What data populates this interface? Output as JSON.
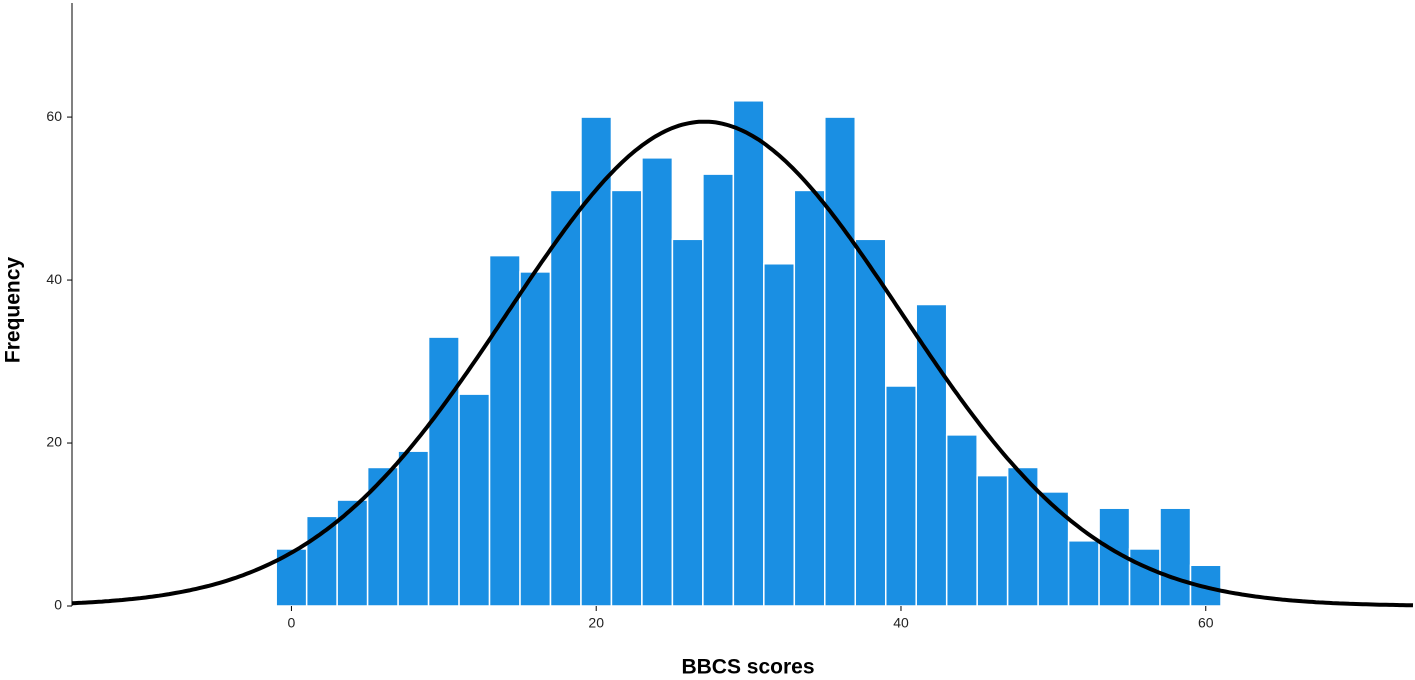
{
  "chart_data": {
    "type": "histogram",
    "x_label": "BBCS scores",
    "y_label": "Frequency",
    "bins": [
      -1,
      1,
      3,
      5,
      7,
      9,
      11,
      13,
      15,
      17,
      19,
      21,
      23,
      25,
      27,
      29,
      31,
      33,
      35,
      37,
      39,
      41,
      43,
      45,
      47,
      49,
      51,
      53,
      55,
      57,
      59,
      61
    ],
    "values": [
      7,
      11,
      13,
      17,
      19,
      33,
      26,
      43,
      41,
      51,
      60,
      51,
      55,
      45,
      53,
      62,
      42,
      51,
      60,
      45,
      27,
      37,
      21,
      16,
      17,
      14,
      8,
      12,
      7,
      12,
      5
    ],
    "color": "#1a8fe3",
    "normal_curve": {
      "mean": 27.1,
      "sd": 12.9,
      "color": "#000000"
    },
    "xlim": [
      -14.4,
      73.6
    ],
    "xticks": [
      0,
      20,
      40,
      60
    ],
    "ylim": [
      0,
      74
    ],
    "yticks": [
      0,
      20,
      40,
      60
    ]
  }
}
